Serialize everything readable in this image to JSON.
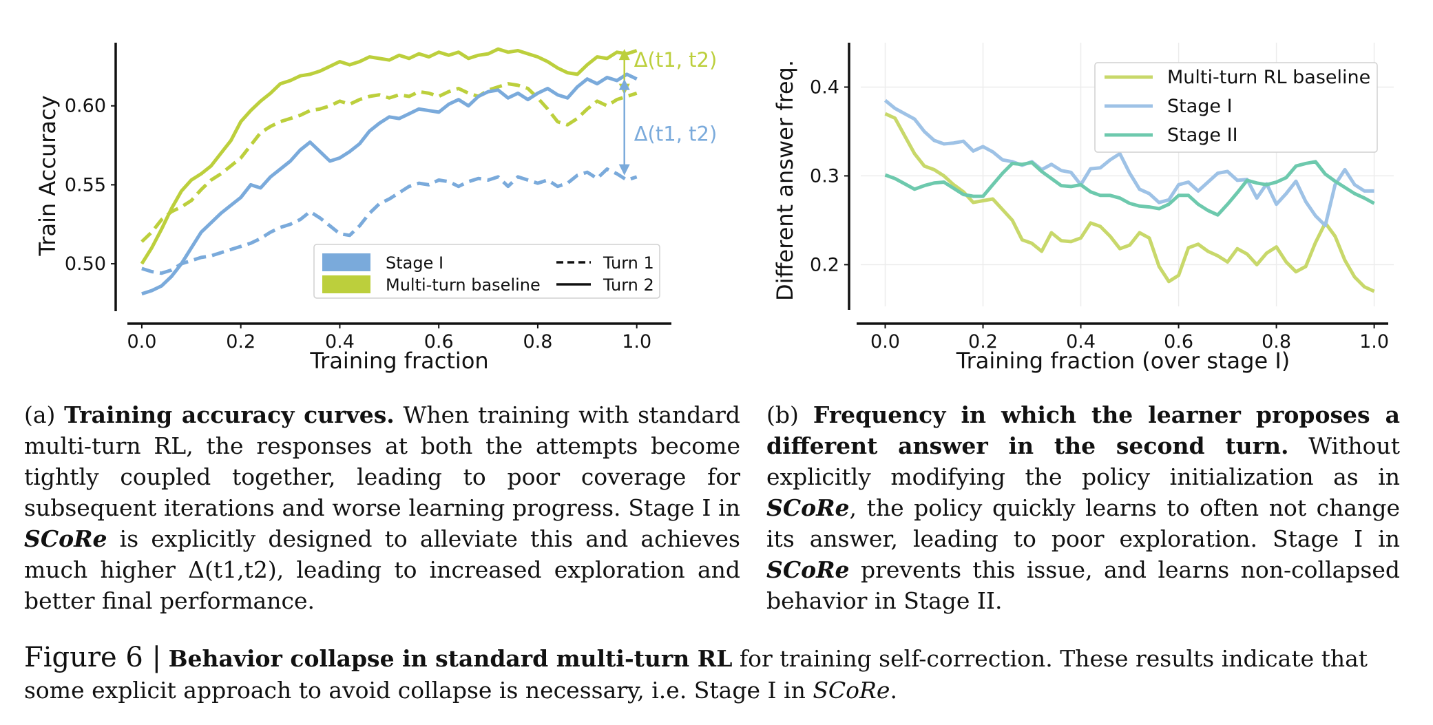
{
  "charts_meta": {},
  "chart_data": [
    {
      "type": "line",
      "panel": "a",
      "xlabel": "Training fraction",
      "ylabel": "Train Accuracy",
      "xlim": [
        -0.05,
        1.07
      ],
      "ylim": [
        0.473,
        0.64
      ],
      "xticks": [
        "0.0",
        "0.2",
        "0.4",
        "0.6",
        "0.8",
        "1.0"
      ],
      "yticks": [
        "0.50",
        "0.55",
        "0.60"
      ],
      "grid": false,
      "legend_position": "bottom-right",
      "legend": [
        {
          "label": "Stage I",
          "kind": "patch",
          "color": "#7aaadb"
        },
        {
          "label": "Multi-turn baseline",
          "kind": "patch",
          "color": "#bccf3c"
        },
        {
          "label": "Turn 1",
          "kind": "dashed"
        },
        {
          "label": "Turn 2",
          "kind": "solid"
        }
      ],
      "annotations": [
        {
          "text": "Δ(t1, t2)",
          "color": "#bccf3c",
          "x": 0.975,
          "y_from": 0.636,
          "y_to": 0.607
        },
        {
          "text": "Δ(t1, t2)",
          "color": "#7aaadb",
          "x": 0.975,
          "y_from": 0.617,
          "y_to": 0.556
        }
      ],
      "series": [
        {
          "group": "Multi-turn baseline",
          "turn": "Turn 2",
          "color": "#bccf3c",
          "x": [
            0.0,
            0.02,
            0.04,
            0.06,
            0.08,
            0.1,
            0.12,
            0.14,
            0.16,
            0.18,
            0.2,
            0.22,
            0.24,
            0.26,
            0.28,
            0.3,
            0.32,
            0.34,
            0.36,
            0.38,
            0.4,
            0.42,
            0.44,
            0.46,
            0.48,
            0.5,
            0.52,
            0.54,
            0.56,
            0.58,
            0.6,
            0.62,
            0.64,
            0.66,
            0.68,
            0.7,
            0.72,
            0.74,
            0.76,
            0.78,
            0.8,
            0.82,
            0.84,
            0.86,
            0.88,
            0.9,
            0.92,
            0.94,
            0.96,
            0.98,
            1.0
          ],
          "values": [
            0.5,
            0.51,
            0.522,
            0.535,
            0.546,
            0.553,
            0.557,
            0.562,
            0.57,
            0.578,
            0.59,
            0.597,
            0.603,
            0.608,
            0.614,
            0.616,
            0.619,
            0.62,
            0.622,
            0.625,
            0.628,
            0.626,
            0.628,
            0.631,
            0.63,
            0.629,
            0.632,
            0.63,
            0.633,
            0.631,
            0.634,
            0.632,
            0.634,
            0.63,
            0.632,
            0.633,
            0.636,
            0.634,
            0.635,
            0.633,
            0.631,
            0.628,
            0.624,
            0.621,
            0.62,
            0.626,
            0.631,
            0.63,
            0.634,
            0.633,
            0.635
          ]
        },
        {
          "group": "Multi-turn baseline",
          "turn": "Turn 1",
          "color": "#bccf3c",
          "x": [
            0.0,
            0.02,
            0.04,
            0.06,
            0.08,
            0.1,
            0.12,
            0.14,
            0.16,
            0.18,
            0.2,
            0.22,
            0.24,
            0.26,
            0.28,
            0.3,
            0.32,
            0.34,
            0.36,
            0.38,
            0.4,
            0.42,
            0.44,
            0.46,
            0.48,
            0.5,
            0.52,
            0.54,
            0.56,
            0.58,
            0.6,
            0.62,
            0.64,
            0.66,
            0.68,
            0.7,
            0.72,
            0.74,
            0.76,
            0.78,
            0.8,
            0.82,
            0.84,
            0.86,
            0.88,
            0.9,
            0.92,
            0.94,
            0.96,
            0.98,
            1.0
          ],
          "values": [
            0.514,
            0.52,
            0.528,
            0.533,
            0.536,
            0.54,
            0.547,
            0.553,
            0.557,
            0.562,
            0.567,
            0.575,
            0.583,
            0.587,
            0.59,
            0.592,
            0.594,
            0.597,
            0.598,
            0.6,
            0.603,
            0.601,
            0.604,
            0.606,
            0.607,
            0.605,
            0.607,
            0.606,
            0.609,
            0.608,
            0.606,
            0.609,
            0.611,
            0.608,
            0.606,
            0.61,
            0.612,
            0.614,
            0.613,
            0.611,
            0.605,
            0.598,
            0.59,
            0.588,
            0.592,
            0.598,
            0.603,
            0.6,
            0.604,
            0.606,
            0.608
          ]
        },
        {
          "group": "Stage I",
          "turn": "Turn 2",
          "color": "#7aaadb",
          "x": [
            0.0,
            0.02,
            0.04,
            0.06,
            0.08,
            0.1,
            0.12,
            0.14,
            0.16,
            0.18,
            0.2,
            0.22,
            0.24,
            0.26,
            0.28,
            0.3,
            0.32,
            0.34,
            0.36,
            0.38,
            0.4,
            0.42,
            0.44,
            0.46,
            0.48,
            0.5,
            0.52,
            0.54,
            0.56,
            0.58,
            0.6,
            0.62,
            0.64,
            0.66,
            0.68,
            0.7,
            0.72,
            0.74,
            0.76,
            0.78,
            0.8,
            0.82,
            0.84,
            0.86,
            0.88,
            0.9,
            0.92,
            0.94,
            0.96,
            0.98,
            1.0
          ],
          "values": [
            0.481,
            0.483,
            0.486,
            0.492,
            0.5,
            0.51,
            0.52,
            0.526,
            0.532,
            0.537,
            0.542,
            0.55,
            0.548,
            0.555,
            0.56,
            0.565,
            0.572,
            0.577,
            0.571,
            0.565,
            0.567,
            0.571,
            0.576,
            0.584,
            0.589,
            0.593,
            0.592,
            0.595,
            0.598,
            0.597,
            0.596,
            0.601,
            0.604,
            0.6,
            0.606,
            0.609,
            0.61,
            0.605,
            0.608,
            0.604,
            0.608,
            0.611,
            0.607,
            0.605,
            0.612,
            0.617,
            0.614,
            0.618,
            0.616,
            0.62,
            0.617
          ]
        },
        {
          "group": "Stage I",
          "turn": "Turn 1",
          "color": "#7aaadb",
          "x": [
            0.0,
            0.02,
            0.04,
            0.06,
            0.08,
            0.1,
            0.12,
            0.14,
            0.16,
            0.18,
            0.2,
            0.22,
            0.24,
            0.26,
            0.28,
            0.3,
            0.32,
            0.34,
            0.36,
            0.38,
            0.4,
            0.42,
            0.44,
            0.46,
            0.48,
            0.5,
            0.52,
            0.54,
            0.56,
            0.58,
            0.6,
            0.62,
            0.64,
            0.66,
            0.68,
            0.7,
            0.72,
            0.74,
            0.76,
            0.78,
            0.8,
            0.82,
            0.84,
            0.86,
            0.88,
            0.9,
            0.92,
            0.94,
            0.96,
            0.98,
            1.0
          ],
          "values": [
            0.497,
            0.495,
            0.494,
            0.496,
            0.5,
            0.502,
            0.504,
            0.505,
            0.507,
            0.509,
            0.511,
            0.513,
            0.516,
            0.52,
            0.523,
            0.525,
            0.528,
            0.533,
            0.529,
            0.524,
            0.519,
            0.518,
            0.524,
            0.532,
            0.538,
            0.541,
            0.545,
            0.549,
            0.551,
            0.55,
            0.553,
            0.552,
            0.549,
            0.552,
            0.554,
            0.553,
            0.555,
            0.549,
            0.555,
            0.553,
            0.551,
            0.553,
            0.549,
            0.551,
            0.556,
            0.558,
            0.554,
            0.56,
            0.557,
            0.553,
            0.555
          ]
        }
      ]
    },
    {
      "type": "line",
      "panel": "b",
      "xlabel": "Training fraction (over stage I)",
      "ylabel": "Different answer freq.",
      "xlim": [
        -0.05,
        1.04
      ],
      "ylim": [
        0.153,
        0.45
      ],
      "xticks": [
        "0.0",
        "0.2",
        "0.4",
        "0.6",
        "0.8",
        "1.0"
      ],
      "yticks": [
        "0.2",
        "0.3",
        "0.4"
      ],
      "grid": true,
      "legend_position": "top-right",
      "series": [
        {
          "name": "Multi-turn RL baseline",
          "color": "#c8d86a",
          "x": [
            0.0,
            0.02,
            0.04,
            0.06,
            0.08,
            0.1,
            0.12,
            0.14,
            0.16,
            0.18,
            0.2,
            0.22,
            0.24,
            0.26,
            0.28,
            0.3,
            0.32,
            0.34,
            0.36,
            0.38,
            0.4,
            0.42,
            0.44,
            0.46,
            0.48,
            0.5,
            0.52,
            0.54,
            0.56,
            0.58,
            0.6,
            0.62,
            0.64,
            0.66,
            0.68,
            0.7,
            0.72,
            0.74,
            0.76,
            0.78,
            0.8,
            0.82,
            0.84,
            0.86,
            0.88,
            0.9,
            0.92,
            0.94,
            0.96,
            0.98,
            1.0
          ],
          "values": [
            0.37,
            0.365,
            0.345,
            0.325,
            0.311,
            0.307,
            0.3,
            0.29,
            0.282,
            0.27,
            0.272,
            0.274,
            0.262,
            0.25,
            0.228,
            0.224,
            0.215,
            0.236,
            0.227,
            0.226,
            0.23,
            0.247,
            0.243,
            0.232,
            0.218,
            0.222,
            0.236,
            0.23,
            0.198,
            0.181,
            0.188,
            0.219,
            0.223,
            0.215,
            0.21,
            0.203,
            0.218,
            0.212,
            0.2,
            0.213,
            0.22,
            0.203,
            0.192,
            0.198,
            0.225,
            0.247,
            0.232,
            0.205,
            0.186,
            0.175,
            0.17
          ]
        },
        {
          "name": "Stage I",
          "color": "#9ec2e6",
          "x": [
            0.0,
            0.02,
            0.04,
            0.06,
            0.08,
            0.1,
            0.12,
            0.14,
            0.16,
            0.18,
            0.2,
            0.22,
            0.24,
            0.26,
            0.28,
            0.3,
            0.32,
            0.34,
            0.36,
            0.38,
            0.4,
            0.42,
            0.44,
            0.46,
            0.48,
            0.5,
            0.52,
            0.54,
            0.56,
            0.58,
            0.6,
            0.62,
            0.64,
            0.66,
            0.68,
            0.7,
            0.72,
            0.74,
            0.76,
            0.78,
            0.8,
            0.82,
            0.84,
            0.86,
            0.88,
            0.9,
            0.92,
            0.94,
            0.96,
            0.98,
            1.0
          ],
          "values": [
            0.385,
            0.376,
            0.37,
            0.364,
            0.35,
            0.34,
            0.336,
            0.337,
            0.339,
            0.328,
            0.333,
            0.327,
            0.318,
            0.316,
            0.312,
            0.316,
            0.307,
            0.313,
            0.306,
            0.304,
            0.29,
            0.308,
            0.309,
            0.318,
            0.325,
            0.303,
            0.285,
            0.28,
            0.27,
            0.273,
            0.29,
            0.293,
            0.283,
            0.293,
            0.303,
            0.305,
            0.295,
            0.296,
            0.275,
            0.291,
            0.268,
            0.28,
            0.294,
            0.271,
            0.255,
            0.244,
            0.29,
            0.307,
            0.29,
            0.283,
            0.283
          ]
        },
        {
          "name": "Stage II",
          "color": "#6dc9ad",
          "x": [
            0.0,
            0.02,
            0.04,
            0.06,
            0.08,
            0.1,
            0.12,
            0.14,
            0.16,
            0.18,
            0.2,
            0.22,
            0.24,
            0.26,
            0.28,
            0.3,
            0.32,
            0.34,
            0.36,
            0.38,
            0.4,
            0.42,
            0.44,
            0.46,
            0.48,
            0.5,
            0.52,
            0.54,
            0.56,
            0.58,
            0.6,
            0.62,
            0.64,
            0.66,
            0.68,
            0.7,
            0.72,
            0.74,
            0.76,
            0.78,
            0.8,
            0.82,
            0.84,
            0.86,
            0.88,
            0.9,
            0.92,
            0.94,
            0.96,
            0.98,
            1.0
          ],
          "values": [
            0.301,
            0.297,
            0.291,
            0.285,
            0.289,
            0.292,
            0.293,
            0.286,
            0.279,
            0.277,
            0.277,
            0.29,
            0.303,
            0.314,
            0.313,
            0.315,
            0.305,
            0.297,
            0.289,
            0.288,
            0.29,
            0.282,
            0.278,
            0.278,
            0.275,
            0.269,
            0.266,
            0.265,
            0.263,
            0.268,
            0.278,
            0.278,
            0.268,
            0.261,
            0.256,
            0.268,
            0.281,
            0.295,
            0.292,
            0.29,
            0.293,
            0.298,
            0.311,
            0.314,
            0.316,
            0.302,
            0.294,
            0.287,
            0.28,
            0.275,
            0.269
          ]
        }
      ]
    }
  ],
  "caption_a": {
    "label": "(a)",
    "bold": "Training accuracy curves.",
    "text1": " When training with standard multi-turn RL, the responses at both the attempts become tightly coupled together, leading to poor coverage for subsequent iterations and worse learning progress. Stage I in ",
    "em": "SCoRe",
    "text2": " is explicitly designed to alleviate this and achieves much higher Δ(t1,t2), leading to increased exploration and better final performance."
  },
  "caption_b": {
    "label": "(b)",
    "bold": "Frequency in which the learner proposes a different answer in the second turn.",
    "text1": " Without explicitly modifying the policy initialization as in ",
    "em1": "SCoRe",
    "text2": ", the policy quickly learns to often not change its answer, leading to poor exploration. Stage I in ",
    "em2": "SCoRe",
    "text3": " prevents this issue, and learns non-collapsed behavior in Stage II."
  },
  "figure_caption": {
    "label": "Figure 6 |",
    "bold": "Behavior collapse in standard multi-turn RL",
    "text1": " for training self-correction. These results indicate that some explicit approach to avoid collapse is necessary, i.e. Stage I in ",
    "em": "SCoRe",
    "text2": "."
  }
}
